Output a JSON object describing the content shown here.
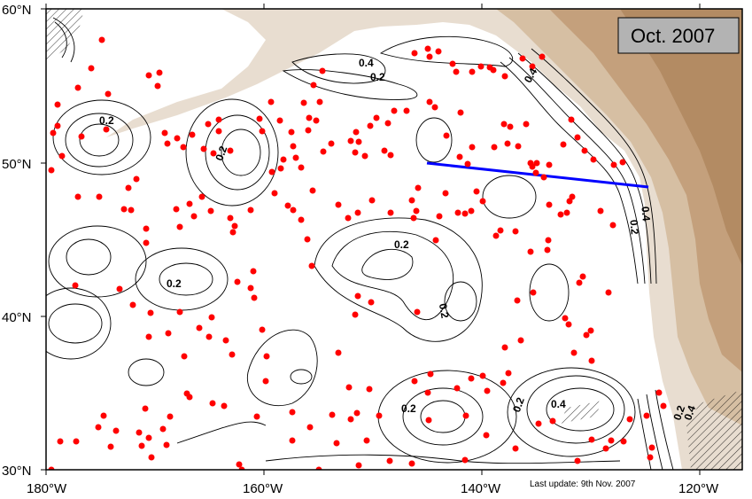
{
  "map": {
    "date_box": "Oct. 2007",
    "last_update": "Last update: 9th Nov. 2007",
    "lat_labels": [
      "60°N",
      "50°N",
      "40°N",
      "30°N"
    ],
    "lon_labels": [
      "180°W",
      "160°W",
      "140°W",
      "120°W"
    ],
    "contour_labels": [
      "0.4",
      "0.2",
      "0.2",
      "0.2",
      "0.2",
      "0.2",
      "0.2",
      "0.2",
      "0.2",
      "0.4",
      "0.4",
      "0.2",
      "0.4",
      "0.2",
      "0.4"
    ],
    "colors": {
      "ocean": "#ffffff",
      "land_low": "#eee6dc",
      "land_mid": "#dcc7ae",
      "land_high": "#b8906a",
      "float_marker": "#ff0000",
      "section_line": "#0000ff",
      "contour": "#000000",
      "date_box_fill": "#b3b3b3"
    }
  }
}
